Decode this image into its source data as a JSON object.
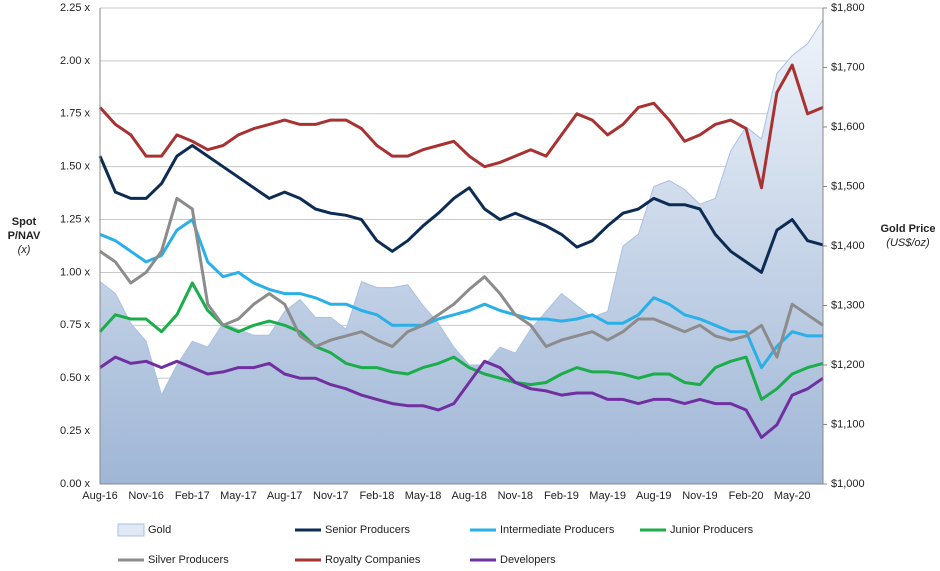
{
  "chart_data": {
    "type": "line",
    "ylabel": [
      "Spot",
      "P/NAV",
      "(x)"
    ],
    "y2label": [
      "Gold Price",
      "(US$/oz)"
    ],
    "categories": [
      "Aug-16",
      null,
      null,
      "Nov-16",
      null,
      null,
      "Feb-17",
      null,
      null,
      "May-17",
      null,
      null,
      "Aug-17",
      null,
      null,
      "Nov-17",
      null,
      null,
      "Feb-18",
      null,
      null,
      "May-18",
      null,
      null,
      "Aug-18",
      null,
      null,
      "Nov-18",
      null,
      null,
      "Feb-19",
      null,
      null,
      "May-19",
      null,
      null,
      "Aug-19",
      null,
      null,
      "Nov-19",
      null,
      null,
      "Feb-20",
      null,
      null,
      "May-20",
      null,
      null
    ],
    "ylim": [
      0,
      2.25
    ],
    "yticks": [
      {
        "value": 0,
        "label": "0.00 x"
      },
      {
        "value": 0.25,
        "label": "0.25 x"
      },
      {
        "value": 0.5,
        "label": "0.50 x"
      },
      {
        "value": 0.75,
        "label": "0.75 x"
      },
      {
        "value": 1,
        "label": "1.00 x"
      },
      {
        "value": 1.25,
        "label": "1.25 x"
      },
      {
        "value": 1.5,
        "label": "1.50 x"
      },
      {
        "value": 1.75,
        "label": "1.75 x"
      },
      {
        "value": 2,
        "label": "2.00 x"
      },
      {
        "value": 2.25,
        "label": "2.25 x"
      }
    ],
    "y2lim": [
      1000,
      1800
    ],
    "y2ticks": [
      {
        "value": 1000,
        "label": "$1,000"
      },
      {
        "value": 1100,
        "label": "$1,100"
      },
      {
        "value": 1200,
        "label": "$1,200"
      },
      {
        "value": 1300,
        "label": "$1,300"
      },
      {
        "value": 1400,
        "label": "$1,400"
      },
      {
        "value": 1500,
        "label": "$1,500"
      },
      {
        "value": 1600,
        "label": "$1,600"
      },
      {
        "value": 1700,
        "label": "$1,700"
      },
      {
        "value": 1800,
        "label": "$1,800"
      }
    ],
    "grid": true,
    "legend": "bottom",
    "series": [
      {
        "name": "Gold",
        "color": "#a9c1e0",
        "axis": "y2",
        "kind": "area",
        "values": [
          1340,
          1320,
          1270,
          1240,
          1150,
          1200,
          1240,
          1230,
          1270,
          1260,
          1250,
          1250,
          1290,
          1310,
          1280,
          1280,
          1260,
          1340,
          1330,
          1330,
          1335,
          1300,
          1270,
          1230,
          1200,
          1200,
          1230,
          1220,
          1260,
          1290,
          1320,
          1300,
          1280,
          1290,
          1400,
          1420,
          1500,
          1510,
          1495,
          1470,
          1480,
          1560,
          1600,
          1580,
          1690,
          1720,
          1740,
          1780
        ]
      },
      {
        "name": "Senior Producers",
        "color": "#0d2c54",
        "values": [
          1.55,
          1.38,
          1.35,
          1.35,
          1.42,
          1.55,
          1.6,
          1.55,
          1.5,
          1.45,
          1.4,
          1.35,
          1.38,
          1.35,
          1.3,
          1.28,
          1.27,
          1.25,
          1.15,
          1.1,
          1.15,
          1.22,
          1.28,
          1.35,
          1.4,
          1.3,
          1.25,
          1.28,
          1.25,
          1.22,
          1.18,
          1.12,
          1.15,
          1.22,
          1.28,
          1.3,
          1.35,
          1.32,
          1.32,
          1.3,
          1.18,
          1.1,
          1.05,
          1.0,
          1.2,
          1.25,
          1.15,
          1.13
        ]
      },
      {
        "name": "Intermediate Producers",
        "color": "#2ab0e8",
        "values": [
          1.18,
          1.15,
          1.1,
          1.05,
          1.08,
          1.2,
          1.25,
          1.05,
          0.98,
          1.0,
          0.95,
          0.92,
          0.9,
          0.9,
          0.88,
          0.85,
          0.85,
          0.82,
          0.8,
          0.75,
          0.75,
          0.75,
          0.78,
          0.8,
          0.82,
          0.85,
          0.82,
          0.8,
          0.78,
          0.78,
          0.77,
          0.78,
          0.8,
          0.76,
          0.76,
          0.8,
          0.88,
          0.85,
          0.8,
          0.78,
          0.75,
          0.72,
          0.72,
          0.55,
          0.65,
          0.72,
          0.7,
          0.7
        ]
      },
      {
        "name": "Junior Producers",
        "color": "#1aad4a",
        "values": [
          0.72,
          0.8,
          0.78,
          0.78,
          0.72,
          0.8,
          0.95,
          0.82,
          0.75,
          0.72,
          0.75,
          0.77,
          0.75,
          0.72,
          0.65,
          0.62,
          0.57,
          0.55,
          0.55,
          0.53,
          0.52,
          0.55,
          0.57,
          0.6,
          0.55,
          0.52,
          0.5,
          0.48,
          0.47,
          0.48,
          0.52,
          0.55,
          0.53,
          0.53,
          0.52,
          0.5,
          0.52,
          0.52,
          0.48,
          0.47,
          0.55,
          0.58,
          0.6,
          0.4,
          0.45,
          0.52,
          0.55,
          0.57
        ]
      },
      {
        "name": "Silver Producers",
        "color": "#8c8c8c",
        "values": [
          1.1,
          1.05,
          0.95,
          1.0,
          1.1,
          1.35,
          1.3,
          0.85,
          0.75,
          0.78,
          0.85,
          0.9,
          0.85,
          0.7,
          0.65,
          0.68,
          0.7,
          0.72,
          0.68,
          0.65,
          0.72,
          0.75,
          0.8,
          0.85,
          0.92,
          0.98,
          0.9,
          0.8,
          0.75,
          0.65,
          0.68,
          0.7,
          0.72,
          0.68,
          0.72,
          0.78,
          0.78,
          0.75,
          0.72,
          0.75,
          0.7,
          0.68,
          0.7,
          0.75,
          0.6,
          0.85,
          0.8,
          0.75
        ]
      },
      {
        "name": "Royalty Companies",
        "color": "#a83232",
        "values": [
          1.78,
          1.7,
          1.65,
          1.55,
          1.55,
          1.65,
          1.62,
          1.58,
          1.6,
          1.65,
          1.68,
          1.7,
          1.72,
          1.7,
          1.7,
          1.72,
          1.72,
          1.68,
          1.6,
          1.55,
          1.55,
          1.58,
          1.6,
          1.62,
          1.55,
          1.5,
          1.52,
          1.55,
          1.58,
          1.55,
          1.65,
          1.75,
          1.72,
          1.65,
          1.7,
          1.78,
          1.8,
          1.72,
          1.62,
          1.65,
          1.7,
          1.72,
          1.68,
          1.4,
          1.85,
          1.98,
          1.75,
          1.78
        ]
      },
      {
        "name": "Developers",
        "color": "#7030a0",
        "values": [
          0.55,
          0.6,
          0.57,
          0.58,
          0.55,
          0.58,
          0.55,
          0.52,
          0.53,
          0.55,
          0.55,
          0.57,
          0.52,
          0.5,
          0.5,
          0.47,
          0.45,
          0.42,
          0.4,
          0.38,
          0.37,
          0.37,
          0.35,
          0.38,
          0.48,
          0.58,
          0.55,
          0.48,
          0.45,
          0.44,
          0.42,
          0.43,
          0.43,
          0.4,
          0.4,
          0.38,
          0.4,
          0.4,
          0.38,
          0.4,
          0.38,
          0.38,
          0.35,
          0.22,
          0.28,
          0.42,
          0.45,
          0.5
        ]
      }
    ]
  }
}
